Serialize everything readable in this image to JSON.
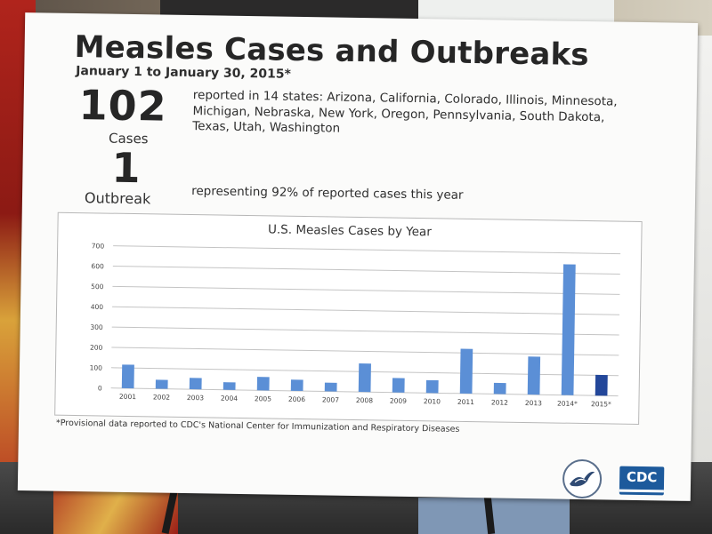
{
  "poster": {
    "title": "Measles Cases and Outbreaks",
    "subtitle": "January 1 to January 30, 2015*",
    "cases_number": "102",
    "cases_label": "Cases",
    "states_text": "reported in 14 states: Arizona, California, Colorado, Illinois, Minnesota, Michigan, Nebraska, New York, Oregon, Pennsylvania, South Dakota, Texas, Utah, Washington",
    "outbreak_number": "1",
    "outbreak_label": "Outbreak",
    "outbreak_text": "representing 92% of reported cases this year",
    "footnote": "*Provisional data reported to CDC's National Center for Immunization and Respiratory Diseases",
    "cdc_logo_text": "CDC"
  },
  "colors": {
    "bar": "#5b8fd6",
    "bar_highlight": "#23479a",
    "grid": "#c4c4c4"
  },
  "chart_data": {
    "type": "bar",
    "title": "U.S. Measles Cases by Year",
    "xlabel": "",
    "ylabel": "",
    "ylim": [
      0,
      700
    ],
    "yticks": [
      0,
      100,
      200,
      300,
      400,
      500,
      600,
      700
    ],
    "grid": true,
    "categories": [
      "2001",
      "2002",
      "2003",
      "2004",
      "2005",
      "2006",
      "2007",
      "2008",
      "2009",
      "2010",
      "2011",
      "2012",
      "2013",
      "2014*",
      "2015*"
    ],
    "values": [
      116,
      44,
      56,
      37,
      66,
      55,
      43,
      140,
      71,
      63,
      220,
      55,
      187,
      644,
      102
    ],
    "highlight_category": "2015*"
  }
}
